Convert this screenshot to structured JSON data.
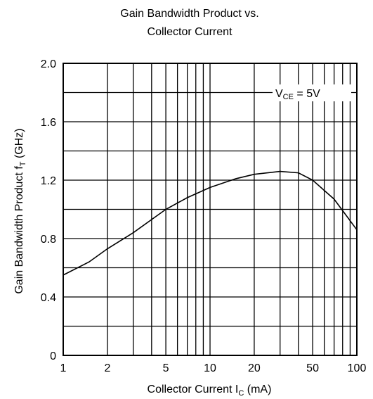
{
  "chart_data": {
    "type": "line",
    "title": [
      "Gain Bandwidth Product vs.",
      "Collector Current"
    ],
    "x_label": {
      "text": "Collector Current  I",
      "sub": "C",
      "rest": " (mA)"
    },
    "y_label": {
      "text": "Gain Bandwidth Product  f",
      "sub": "T",
      "rest": " (GHz)"
    },
    "annotation": {
      "text": "V",
      "sub": "CE",
      "rest": " = 5V"
    },
    "x": [
      1,
      1.5,
      2,
      3,
      5,
      7,
      10,
      15,
      20,
      30,
      40,
      50,
      70,
      100
    ],
    "series": [
      {
        "name": "f_T",
        "color": "#000000",
        "values": [
          0.55,
          0.64,
          0.73,
          0.84,
          1.0,
          1.08,
          1.15,
          1.21,
          1.24,
          1.26,
          1.25,
          1.2,
          1.07,
          0.86
        ]
      }
    ],
    "xscale": "log",
    "xlim": [
      1,
      100
    ],
    "xticks": [
      1,
      2,
      5,
      10,
      20,
      50,
      100
    ],
    "x_minor_ticks": [
      3,
      4,
      6,
      7,
      8,
      9,
      30,
      40,
      60,
      70,
      80,
      90
    ],
    "ylim": [
      0,
      2
    ],
    "yticks": [
      0,
      0.4,
      0.8,
      1.2,
      1.6,
      {
        "value": 2,
        "label": "2.0"
      }
    ],
    "y_minor_ticks": [
      0.2,
      0.6,
      1.0,
      1.4,
      1.8
    ],
    "grid": true
  }
}
